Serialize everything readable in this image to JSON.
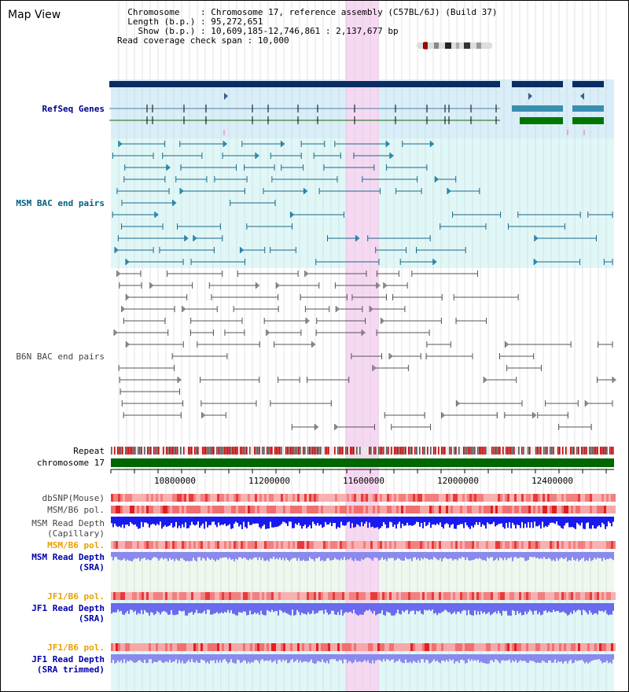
{
  "app": {
    "title": "Map View"
  },
  "info": {
    "chromosome_key": "Chromosome",
    "chromosome_value": "Chromosome 17, reference assembly (C57BL/6J) (Build 37)",
    "length_key": "Length (b.p.)",
    "length_value": "95,272,651",
    "show_key": "Show (b.p.)",
    "show_value": "10,609,185-12,746,861 : 2,137,677 bp",
    "coverage_key": "Read coverage check span",
    "coverage_value": "10,000"
  },
  "tracks": {
    "refseq": "RefSeq Genes",
    "msm_bac": "MSM BAC end pairs",
    "b6n_bac": "B6N BAC end pairs",
    "repeat": "Repeat",
    "chrom": "chromosome 17",
    "dbsnp": "dbSNP(Mouse)",
    "msm_b6_pol_1": "MSM/B6 pol.",
    "msm_read_depth_cap": "MSM Read Depth\n(Capillary)",
    "msm_b6_pol_2": "MSM/B6 pol.",
    "msm_read_depth_sra": "MSM Read Depth\n(SRA)",
    "jf1_b6_pol_1": "JF1/B6 pol.",
    "jf1_read_depth_sra": "JF1 Read Depth\n(SRA)",
    "jf1_b6_pol_2": "JF1/B6 pol.",
    "jf1_read_depth_trim": "JF1 Read Depth\n(SRA trimmed)"
  },
  "axis": {
    "ticks": [
      "10800000",
      "11200000",
      "11600000",
      "12000000",
      "12400000"
    ]
  },
  "colors": {
    "refseq_bg": "#d8eef8",
    "msm_bg": "#e0f7f7",
    "highlight": "#f7d6f2",
    "gene_dark": "#003366",
    "gene_green": "#006600",
    "chrom_bar": "#006600"
  }
}
